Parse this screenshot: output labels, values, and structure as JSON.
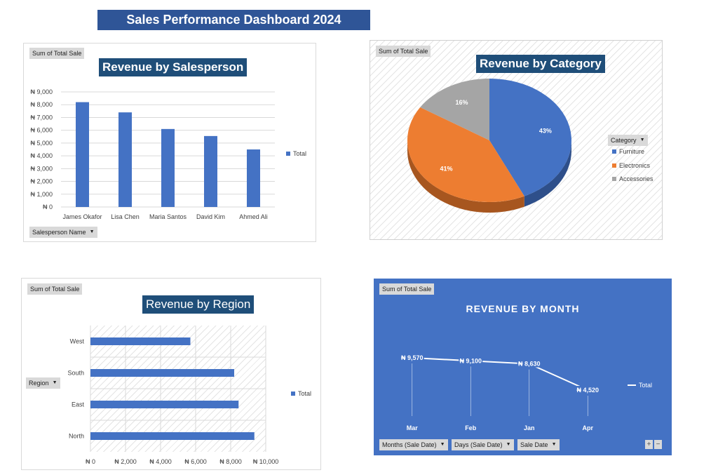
{
  "dashboard": {
    "title": "Sales Performance Dashboard 2024"
  },
  "colors": {
    "blue": "#4472c4",
    "orange": "#ed7d31",
    "gray": "#a5a5a5",
    "title_bg": "#1f4e79",
    "header_bg": "#2f5597"
  },
  "panels": {
    "sales": {
      "field_button": "Sum of Total Sale",
      "axis_button": "Salesperson Name",
      "legend": "Total"
    },
    "category": {
      "field_button": "Sum of Total Sale",
      "legend_button": "Category",
      "legend_items": [
        "Furniture",
        "Electronics",
        "Accessories"
      ]
    },
    "region": {
      "field_button": "Sum of Total Sale",
      "axis_button": "Region",
      "legend": "Total"
    },
    "month": {
      "field_button": "Sum of Total Sale",
      "legend": "Total",
      "filter_buttons": [
        "Months (Sale Date)",
        "Days (Sale Date)",
        "Sale Date"
      ],
      "plus": "+",
      "minus": "−"
    }
  },
  "chart_data": [
    {
      "type": "bar",
      "title": "Revenue by Salesperson",
      "categories": [
        "James Okafor",
        "Lisa Chen",
        "Maria Santos",
        "David Kim",
        "Ahmed Ali"
      ],
      "series": [
        {
          "name": "Total",
          "values": [
            8200,
            7400,
            6100,
            5550,
            4500
          ]
        }
      ],
      "ylim": [
        0,
        9000
      ],
      "yticks": [
        "₦ 0",
        "₦ 1,000",
        "₦ 2,000",
        "₦ 3,000",
        "₦ 4,000",
        "₦ 5,000",
        "₦ 6,000",
        "₦ 7,000",
        "₦ 8,000",
        "₦ 9,000"
      ],
      "legend": "right",
      "grid": true
    },
    {
      "type": "pie",
      "title": "Revenue by Category",
      "labels": [
        "Furniture",
        "Electronics",
        "Accessories"
      ],
      "values": [
        43,
        41,
        16
      ],
      "data_labels": [
        "43%",
        "41%",
        "16%"
      ],
      "legend": "right"
    },
    {
      "type": "bar",
      "orientation": "horizontal",
      "title": "Revenue by Region",
      "categories": [
        "West",
        "South",
        "East",
        "North"
      ],
      "series": [
        {
          "name": "Total",
          "values": [
            5700,
            8200,
            8450,
            9350
          ]
        }
      ],
      "xlim": [
        0,
        10000
      ],
      "xticks": [
        "₦ 0",
        "₦ 2,000",
        "₦ 4,000",
        "₦ 6,000",
        "₦ 8,000",
        "₦ 10,000"
      ],
      "legend": "right",
      "grid": true
    },
    {
      "type": "line",
      "title": "REVENUE BY MONTH",
      "categories": [
        "Mar",
        "Feb",
        "Jan",
        "Apr"
      ],
      "series": [
        {
          "name": "Total",
          "values": [
            9570,
            9100,
            8630,
            4520
          ]
        }
      ],
      "data_labels": [
        "₦ 9,570",
        "₦ 9,100",
        "₦ 8,630",
        "₦ 4,520"
      ],
      "legend": "right"
    }
  ]
}
